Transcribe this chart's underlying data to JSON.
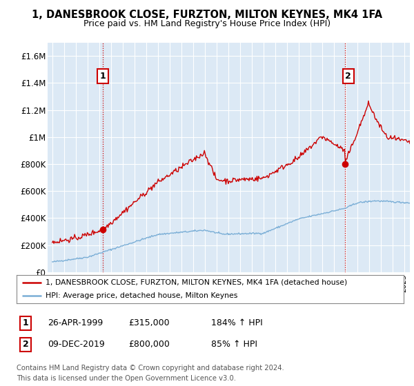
{
  "title": "1, DANESBROOK CLOSE, FURZTON, MILTON KEYNES, MK4 1FA",
  "subtitle": "Price paid vs. HM Land Registry's House Price Index (HPI)",
  "legend_line1": "1, DANESBROOK CLOSE, FURZTON, MILTON KEYNES, MK4 1FA (detached house)",
  "legend_line2": "HPI: Average price, detached house, Milton Keynes",
  "point1_date": "26-APR-1999",
  "point1_price": "£315,000",
  "point1_hpi": "184% ↑ HPI",
  "point2_date": "09-DEC-2019",
  "point2_price": "£800,000",
  "point2_hpi": "85% ↑ HPI",
  "footer": "Contains HM Land Registry data © Crown copyright and database right 2024.\nThis data is licensed under the Open Government Licence v3.0.",
  "house_color": "#cc0000",
  "hpi_color": "#7aaed6",
  "plot_bg_color": "#dce9f5",
  "background_color": "#ffffff",
  "grid_color": "#ffffff",
  "ylim": [
    0,
    1700000
  ],
  "yticks": [
    0,
    200000,
    400000,
    600000,
    800000,
    1000000,
    1200000,
    1400000,
    1600000
  ],
  "ytick_labels": [
    "£0",
    "£200K",
    "£400K",
    "£600K",
    "£800K",
    "£1M",
    "£1.2M",
    "£1.4M",
    "£1.6M"
  ],
  "sale1_x": 1999.32,
  "sale1_y": 315000,
  "sale2_x": 2019.94,
  "sale2_y": 800000,
  "xlim_min": 1994.6,
  "xlim_max": 2025.5
}
